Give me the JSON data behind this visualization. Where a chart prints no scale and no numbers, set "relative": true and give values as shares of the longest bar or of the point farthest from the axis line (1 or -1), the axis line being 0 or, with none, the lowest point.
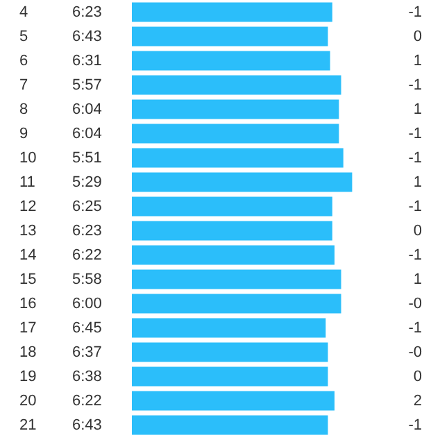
{
  "chart_data": {
    "type": "bar",
    "orientation": "horizontal",
    "relative": true,
    "color": "#2bbefa",
    "categories": [
      "4",
      "5",
      "6",
      "7",
      "8",
      "9",
      "10",
      "11",
      "12",
      "13",
      "14",
      "15",
      "16",
      "17",
      "18",
      "19",
      "20",
      "21"
    ],
    "values": [
      0.91,
      0.89,
      0.9,
      0.95,
      0.94,
      0.94,
      0.96,
      1,
      0.91,
      0.91,
      0.92,
      0.95,
      0.95,
      0.88,
      0.89,
      0.89,
      0.92,
      0.89
    ],
    "annotations": [
      "6:23",
      "6:43",
      "6:31",
      "5:57",
      "6:04",
      "6:04",
      "5:51",
      "5:29",
      "6:25",
      "6:23",
      "6:22",
      "5:58",
      "6:00",
      "6:45",
      "6:37",
      "6:38",
      "6:22",
      "6:43",
      "-1",
      "0",
      "1",
      "-1",
      "1",
      "-1",
      "-1",
      "1",
      "-1",
      "0",
      "-1",
      "1",
      "-0",
      "-1",
      "-0",
      "0",
      "2",
      "-1"
    ],
    "grid": false
  }
}
